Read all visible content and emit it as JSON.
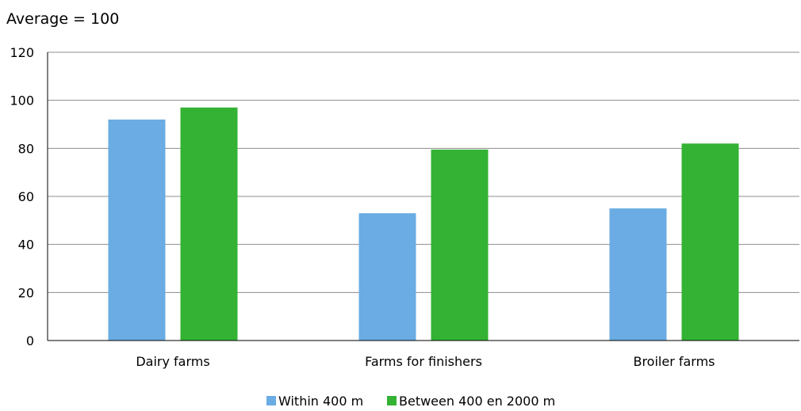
{
  "chart_data": {
    "type": "bar",
    "title": "Average = 100",
    "xlabel": "",
    "ylabel": "",
    "categories": [
      "Dairy farms",
      "Farms for finishers",
      "Broiler farms"
    ],
    "series": [
      {
        "name": "Within 400 m",
        "values": [
          92,
          53,
          55
        ],
        "color": "#6aace3"
      },
      {
        "name": "Between 400 en 2000 m",
        "values": [
          97,
          79.5,
          82
        ],
        "color": "#33b233"
      }
    ],
    "ylim": [
      0,
      120
    ],
    "yticks": [
      0,
      20,
      40,
      60,
      80,
      100,
      120
    ],
    "grid": true,
    "legend": "bottom"
  }
}
